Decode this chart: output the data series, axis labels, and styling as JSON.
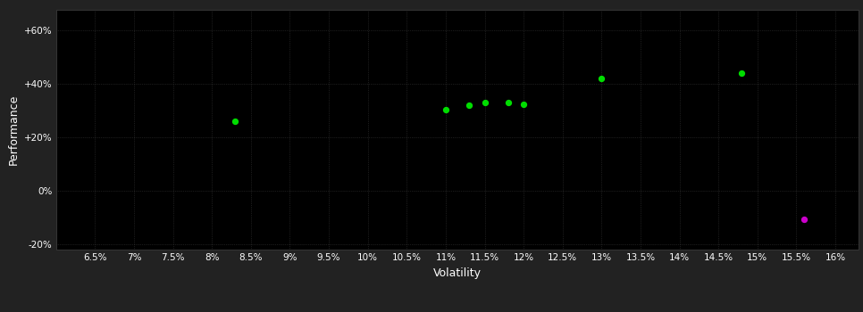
{
  "xlabel": "Volatility",
  "ylabel": "Performance",
  "background_color": "#222222",
  "plot_bg_color": "#000000",
  "grid_color": "#444444",
  "text_color": "#ffffff",
  "xlim": [
    0.06,
    0.163
  ],
  "ylim": [
    -0.22,
    0.68
  ],
  "xticks": [
    0.065,
    0.07,
    0.075,
    0.08,
    0.085,
    0.09,
    0.095,
    0.1,
    0.105,
    0.11,
    0.115,
    0.12,
    0.125,
    0.13,
    0.135,
    0.14,
    0.145,
    0.15,
    0.155,
    0.16
  ],
  "xtick_labels": [
    "6.5%",
    "7%",
    "7.5%",
    "8%",
    "8.5%",
    "9%",
    "9.5%",
    "10%",
    "10.5%",
    "11%",
    "11.5%",
    "12%",
    "12.5%",
    "13%",
    "13.5%",
    "14%",
    "14.5%",
    "15%",
    "15.5%",
    "16%"
  ],
  "yticks": [
    -0.2,
    0.0,
    0.2,
    0.4,
    0.6
  ],
  "ytick_labels": [
    "-20%",
    "0%",
    "+20%",
    "+40%",
    "+60%"
  ],
  "green_dots": [
    [
      0.083,
      0.26
    ],
    [
      0.11,
      0.305
    ],
    [
      0.113,
      0.32
    ],
    [
      0.115,
      0.33
    ],
    [
      0.118,
      0.33
    ],
    [
      0.12,
      0.325
    ],
    [
      0.13,
      0.42
    ],
    [
      0.148,
      0.44
    ]
  ],
  "magenta_dots": [
    [
      0.156,
      -0.105
    ]
  ],
  "dot_color_green": "#00dd00",
  "dot_color_magenta": "#cc00cc",
  "dot_size": 18
}
